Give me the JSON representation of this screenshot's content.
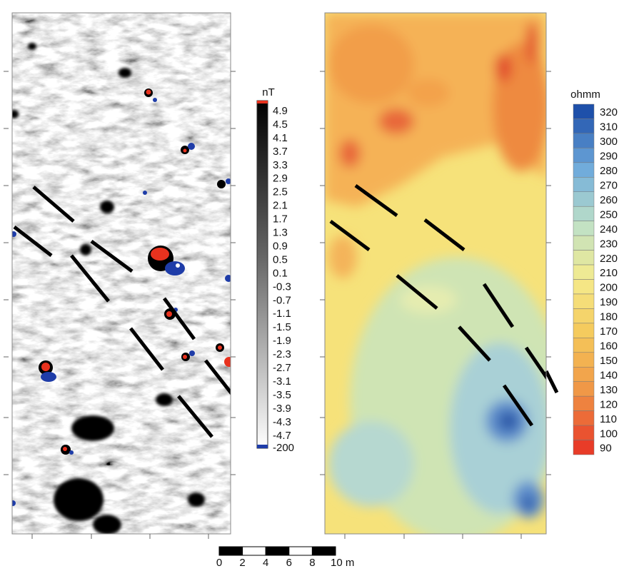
{
  "magnetic_legend": {
    "unit": "nT",
    "labels": [
      4.9,
      4.5,
      4.1,
      3.7,
      3.3,
      2.9,
      2.5,
      2.1,
      1.7,
      1.3,
      0.9,
      0.5,
      0.1,
      -0.3,
      -0.7,
      -1.1,
      -1.5,
      -1.9,
      -2.3,
      -2.7,
      -3.1,
      -3.5,
      -3.9,
      -4.3,
      -4.7,
      -200
    ]
  },
  "resistivity_legend": {
    "unit": "ohmm",
    "labels": [
      320,
      310,
      300,
      290,
      280,
      270,
      260,
      250,
      240,
      230,
      220,
      210,
      200,
      190,
      180,
      170,
      160,
      150,
      140,
      130,
      120,
      110,
      100,
      90
    ]
  },
  "scale_bar": {
    "labels": [
      "0",
      "2",
      "4",
      "6",
      "8",
      "10 m"
    ]
  }
}
